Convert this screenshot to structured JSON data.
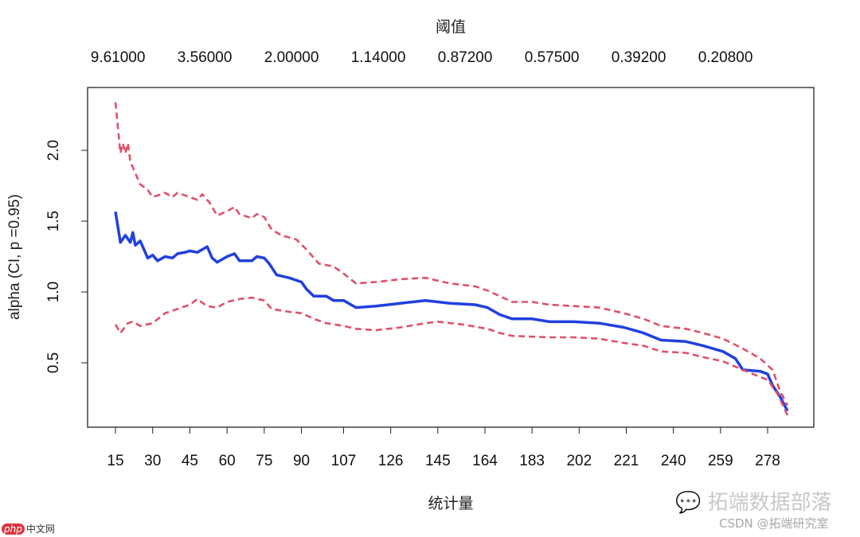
{
  "chart_data": {
    "type": "line",
    "title": "阈值",
    "xlabel": "统计量",
    "ylabel": "alpha (CI, p =0.95)",
    "xlim": [
      4,
      297
    ],
    "ylim": [
      0.1,
      2.42
    ],
    "grid": false,
    "legend": "none",
    "x_ticks": [
      15,
      30,
      45,
      60,
      75,
      90,
      107,
      126,
      145,
      164,
      183,
      202,
      221,
      240,
      259,
      278
    ],
    "y_ticks": [
      0.5,
      1.0,
      1.5,
      2.0
    ],
    "y_tick_labels": [
      "0.5",
      "1.0",
      "1.5",
      "2.0"
    ],
    "top_axis": {
      "positions": [
        16,
        51,
        86,
        121,
        156,
        191,
        226,
        261
      ],
      "labels": [
        "9.61000",
        "3.56000",
        "2.00000",
        "1.14000",
        "0.87200",
        "0.57500",
        "0.39200",
        "0.20800"
      ]
    },
    "series": [
      {
        "color": "#2040e0",
        "style": "solid",
        "points": [
          [
            15,
            1.567
          ],
          [
            17,
            1.35
          ],
          [
            19,
            1.4
          ],
          [
            21,
            1.35
          ],
          [
            22,
            1.42
          ],
          [
            23,
            1.33
          ],
          [
            25,
            1.36
          ],
          [
            28,
            1.24
          ],
          [
            30,
            1.26
          ],
          [
            32,
            1.22
          ],
          [
            35,
            1.25
          ],
          [
            38,
            1.24
          ],
          [
            40,
            1.27
          ],
          [
            43,
            1.28
          ],
          [
            45,
            1.29
          ],
          [
            48,
            1.28
          ],
          [
            50,
            1.3
          ],
          [
            52,
            1.32
          ],
          [
            54,
            1.24
          ],
          [
            56,
            1.21
          ],
          [
            60,
            1.25
          ],
          [
            63,
            1.27
          ],
          [
            65,
            1.22
          ],
          [
            70,
            1.22
          ],
          [
            72,
            1.25
          ],
          [
            75,
            1.24
          ],
          [
            77,
            1.2
          ],
          [
            80,
            1.12
          ],
          [
            85,
            1.1
          ],
          [
            90,
            1.07
          ],
          [
            92,
            1.02
          ],
          [
            95,
            0.97
          ],
          [
            100,
            0.97
          ],
          [
            103,
            0.94
          ],
          [
            107,
            0.94
          ],
          [
            112,
            0.89
          ],
          [
            120,
            0.9
          ],
          [
            130,
            0.92
          ],
          [
            140,
            0.94
          ],
          [
            145,
            0.93
          ],
          [
            150,
            0.92
          ],
          [
            160,
            0.91
          ],
          [
            165,
            0.89
          ],
          [
            170,
            0.84
          ],
          [
            175,
            0.81
          ],
          [
            183,
            0.81
          ],
          [
            190,
            0.79
          ],
          [
            200,
            0.79
          ],
          [
            210,
            0.78
          ],
          [
            220,
            0.75
          ],
          [
            228,
            0.71
          ],
          [
            235,
            0.66
          ],
          [
            245,
            0.65
          ],
          [
            252,
            0.62
          ],
          [
            260,
            0.58
          ],
          [
            265,
            0.53
          ],
          [
            268,
            0.45
          ],
          [
            275,
            0.44
          ],
          [
            278,
            0.42
          ],
          [
            280,
            0.34
          ],
          [
            283,
            0.26
          ],
          [
            286,
            0.16
          ]
        ]
      },
      {
        "color": "#e0506a",
        "style": "dashed",
        "points": [
          [
            15,
            2.34
          ],
          [
            17,
            1.98
          ],
          [
            18,
            2.05
          ],
          [
            19,
            1.98
          ],
          [
            20,
            2.05
          ],
          [
            21,
            1.92
          ],
          [
            22,
            1.88
          ],
          [
            25,
            1.76
          ],
          [
            28,
            1.72
          ],
          [
            30,
            1.67
          ],
          [
            35,
            1.7
          ],
          [
            38,
            1.67
          ],
          [
            40,
            1.7
          ],
          [
            45,
            1.67
          ],
          [
            48,
            1.65
          ],
          [
            50,
            1.69
          ],
          [
            53,
            1.63
          ],
          [
            56,
            1.54
          ],
          [
            60,
            1.57
          ],
          [
            63,
            1.6
          ],
          [
            65,
            1.55
          ],
          [
            70,
            1.52
          ],
          [
            72,
            1.55
          ],
          [
            75,
            1.53
          ],
          [
            78,
            1.44
          ],
          [
            82,
            1.4
          ],
          [
            88,
            1.37
          ],
          [
            92,
            1.3
          ],
          [
            97,
            1.2
          ],
          [
            103,
            1.18
          ],
          [
            107,
            1.13
          ],
          [
            112,
            1.06
          ],
          [
            120,
            1.07
          ],
          [
            130,
            1.09
          ],
          [
            140,
            1.1
          ],
          [
            145,
            1.08
          ],
          [
            150,
            1.06
          ],
          [
            160,
            1.04
          ],
          [
            165,
            1.01
          ],
          [
            170,
            0.97
          ],
          [
            175,
            0.93
          ],
          [
            183,
            0.93
          ],
          [
            190,
            0.91
          ],
          [
            200,
            0.9
          ],
          [
            210,
            0.89
          ],
          [
            220,
            0.85
          ],
          [
            228,
            0.81
          ],
          [
            235,
            0.76
          ],
          [
            245,
            0.74
          ],
          [
            252,
            0.71
          ],
          [
            260,
            0.67
          ],
          [
            268,
            0.6
          ],
          [
            275,
            0.53
          ],
          [
            280,
            0.45
          ],
          [
            283,
            0.3
          ],
          [
            286,
            0.2
          ]
        ]
      },
      {
        "color": "#e0506a",
        "style": "dashed",
        "points": [
          [
            15,
            0.77
          ],
          [
            17,
            0.71
          ],
          [
            20,
            0.78
          ],
          [
            22,
            0.79
          ],
          [
            25,
            0.76
          ],
          [
            30,
            0.78
          ],
          [
            35,
            0.85
          ],
          [
            40,
            0.88
          ],
          [
            45,
            0.91
          ],
          [
            48,
            0.95
          ],
          [
            52,
            0.9
          ],
          [
            56,
            0.89
          ],
          [
            60,
            0.93
          ],
          [
            65,
            0.95
          ],
          [
            70,
            0.96
          ],
          [
            75,
            0.94
          ],
          [
            78,
            0.88
          ],
          [
            85,
            0.86
          ],
          [
            90,
            0.85
          ],
          [
            95,
            0.81
          ],
          [
            100,
            0.78
          ],
          [
            107,
            0.76
          ],
          [
            112,
            0.74
          ],
          [
            120,
            0.73
          ],
          [
            130,
            0.75
          ],
          [
            140,
            0.78
          ],
          [
            145,
            0.79
          ],
          [
            155,
            0.77
          ],
          [
            165,
            0.74
          ],
          [
            170,
            0.71
          ],
          [
            175,
            0.69
          ],
          [
            190,
            0.68
          ],
          [
            200,
            0.68
          ],
          [
            210,
            0.67
          ],
          [
            220,
            0.64
          ],
          [
            228,
            0.62
          ],
          [
            235,
            0.58
          ],
          [
            245,
            0.57
          ],
          [
            252,
            0.54
          ],
          [
            260,
            0.51
          ],
          [
            268,
            0.45
          ],
          [
            275,
            0.4
          ],
          [
            278,
            0.38
          ],
          [
            282,
            0.28
          ],
          [
            286,
            0.13
          ]
        ]
      }
    ]
  },
  "watermark": {
    "brand": "拓端数据部落",
    "credit": "CSDN @拓端研究室",
    "logo_php": "php",
    "logo_text": "中文网"
  }
}
